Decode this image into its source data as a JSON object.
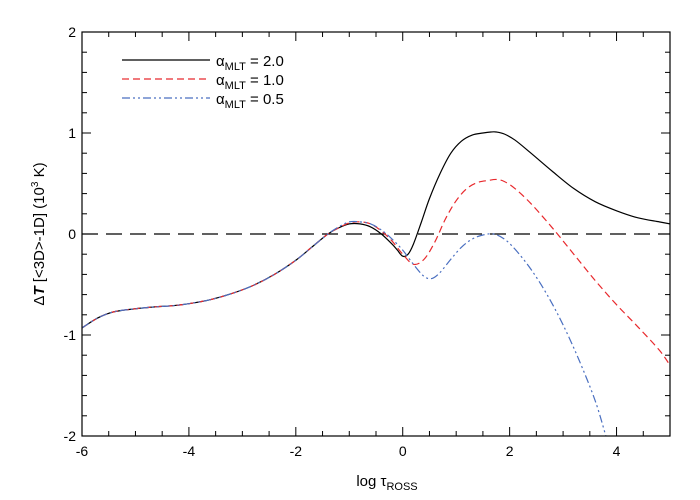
{
  "chart_data": {
    "type": "line",
    "xlabel": {
      "main": "log τ",
      "sub": "ROSS"
    },
    "ylabel": {
      "pre": "Δ",
      "italic": "T",
      "mid": " [<3D>-1D] (10",
      "sup": "3",
      "post": " K)"
    },
    "xlim": [
      -6,
      5
    ],
    "ylim": [
      -2,
      2
    ],
    "xticks": [
      -6,
      -4,
      -2,
      0,
      2,
      4
    ],
    "yticks": [
      -2,
      -1,
      0,
      1,
      2
    ],
    "reference_line_y": 0,
    "legend_position": "top-left",
    "series": [
      {
        "name": "αMLT = 2.0",
        "label": {
          "sym": "α",
          "sub": "MLT",
          "rest": " = 2.0"
        },
        "color": "#000000",
        "dash": "solid",
        "x": [
          -6.0,
          -5.7,
          -5.4,
          -5.0,
          -4.6,
          -4.3,
          -4.0,
          -3.6,
          -3.2,
          -2.8,
          -2.4,
          -2.0,
          -1.7,
          -1.4,
          -1.2,
          -1.0,
          -0.8,
          -0.6,
          -0.4,
          -0.2,
          -0.1,
          0.0,
          0.1,
          0.2,
          0.35,
          0.5,
          0.7,
          0.9,
          1.1,
          1.3,
          1.5,
          1.65,
          1.75,
          1.9,
          2.1,
          2.4,
          2.8,
          3.2,
          3.6,
          4.0,
          4.4,
          4.8,
          5.0
        ],
        "y": [
          -0.93,
          -0.83,
          -0.77,
          -0.74,
          -0.72,
          -0.71,
          -0.69,
          -0.65,
          -0.59,
          -0.51,
          -0.4,
          -0.26,
          -0.13,
          0.0,
          0.06,
          0.1,
          0.1,
          0.07,
          0.0,
          -0.1,
          -0.16,
          -0.22,
          -0.2,
          -0.1,
          0.12,
          0.35,
          0.6,
          0.8,
          0.92,
          0.98,
          1.0,
          1.01,
          1.01,
          0.99,
          0.93,
          0.8,
          0.62,
          0.45,
          0.32,
          0.23,
          0.16,
          0.12,
          0.1
        ]
      },
      {
        "name": "αMLT = 1.0",
        "label": {
          "sym": "α",
          "sub": "MLT",
          "rest": " = 1.0"
        },
        "color": "#e8292d",
        "dash": "dashed",
        "x": [
          -6.0,
          -5.7,
          -5.4,
          -5.0,
          -4.6,
          -4.3,
          -4.0,
          -3.6,
          -3.2,
          -2.8,
          -2.4,
          -2.0,
          -1.7,
          -1.4,
          -1.2,
          -1.0,
          -0.8,
          -0.6,
          -0.4,
          -0.2,
          0.0,
          0.2,
          0.4,
          0.6,
          0.8,
          1.0,
          1.2,
          1.4,
          1.6,
          1.75,
          1.9,
          2.1,
          2.4,
          2.8,
          3.2,
          3.6,
          4.0,
          4.4,
          4.8,
          5.0
        ],
        "y": [
          -0.93,
          -0.83,
          -0.77,
          -0.74,
          -0.72,
          -0.71,
          -0.69,
          -0.65,
          -0.59,
          -0.51,
          -0.4,
          -0.26,
          -0.13,
          0.0,
          0.06,
          0.11,
          0.12,
          0.1,
          0.03,
          -0.07,
          -0.2,
          -0.3,
          -0.25,
          -0.08,
          0.15,
          0.33,
          0.45,
          0.51,
          0.53,
          0.54,
          0.52,
          0.45,
          0.3,
          0.06,
          -0.2,
          -0.46,
          -0.7,
          -0.92,
          -1.15,
          -1.3
        ]
      },
      {
        "name": "αMLT = 0.5",
        "label": {
          "sym": "α",
          "sub": "MLT",
          "rest": " = 0.5"
        },
        "color": "#4a6fc0",
        "dash": "dashdotdot",
        "x": [
          -6.0,
          -5.7,
          -5.4,
          -5.0,
          -4.6,
          -4.3,
          -4.0,
          -3.6,
          -3.2,
          -2.8,
          -2.4,
          -2.0,
          -1.7,
          -1.4,
          -1.2,
          -1.0,
          -0.8,
          -0.6,
          -0.4,
          -0.2,
          0.0,
          0.2,
          0.4,
          0.55,
          0.7,
          0.9,
          1.1,
          1.3,
          1.5,
          1.7,
          1.9,
          2.1,
          2.4,
          2.7,
          3.0,
          3.3,
          3.6,
          3.8
        ],
        "y": [
          -0.93,
          -0.83,
          -0.77,
          -0.74,
          -0.72,
          -0.71,
          -0.69,
          -0.65,
          -0.59,
          -0.51,
          -0.4,
          -0.26,
          -0.13,
          0.0,
          0.07,
          0.12,
          0.12,
          0.1,
          0.04,
          -0.05,
          -0.16,
          -0.3,
          -0.42,
          -0.44,
          -0.38,
          -0.25,
          -0.13,
          -0.05,
          -0.01,
          0.0,
          -0.05,
          -0.15,
          -0.35,
          -0.6,
          -0.9,
          -1.25,
          -1.65,
          -2.0
        ]
      }
    ]
  }
}
